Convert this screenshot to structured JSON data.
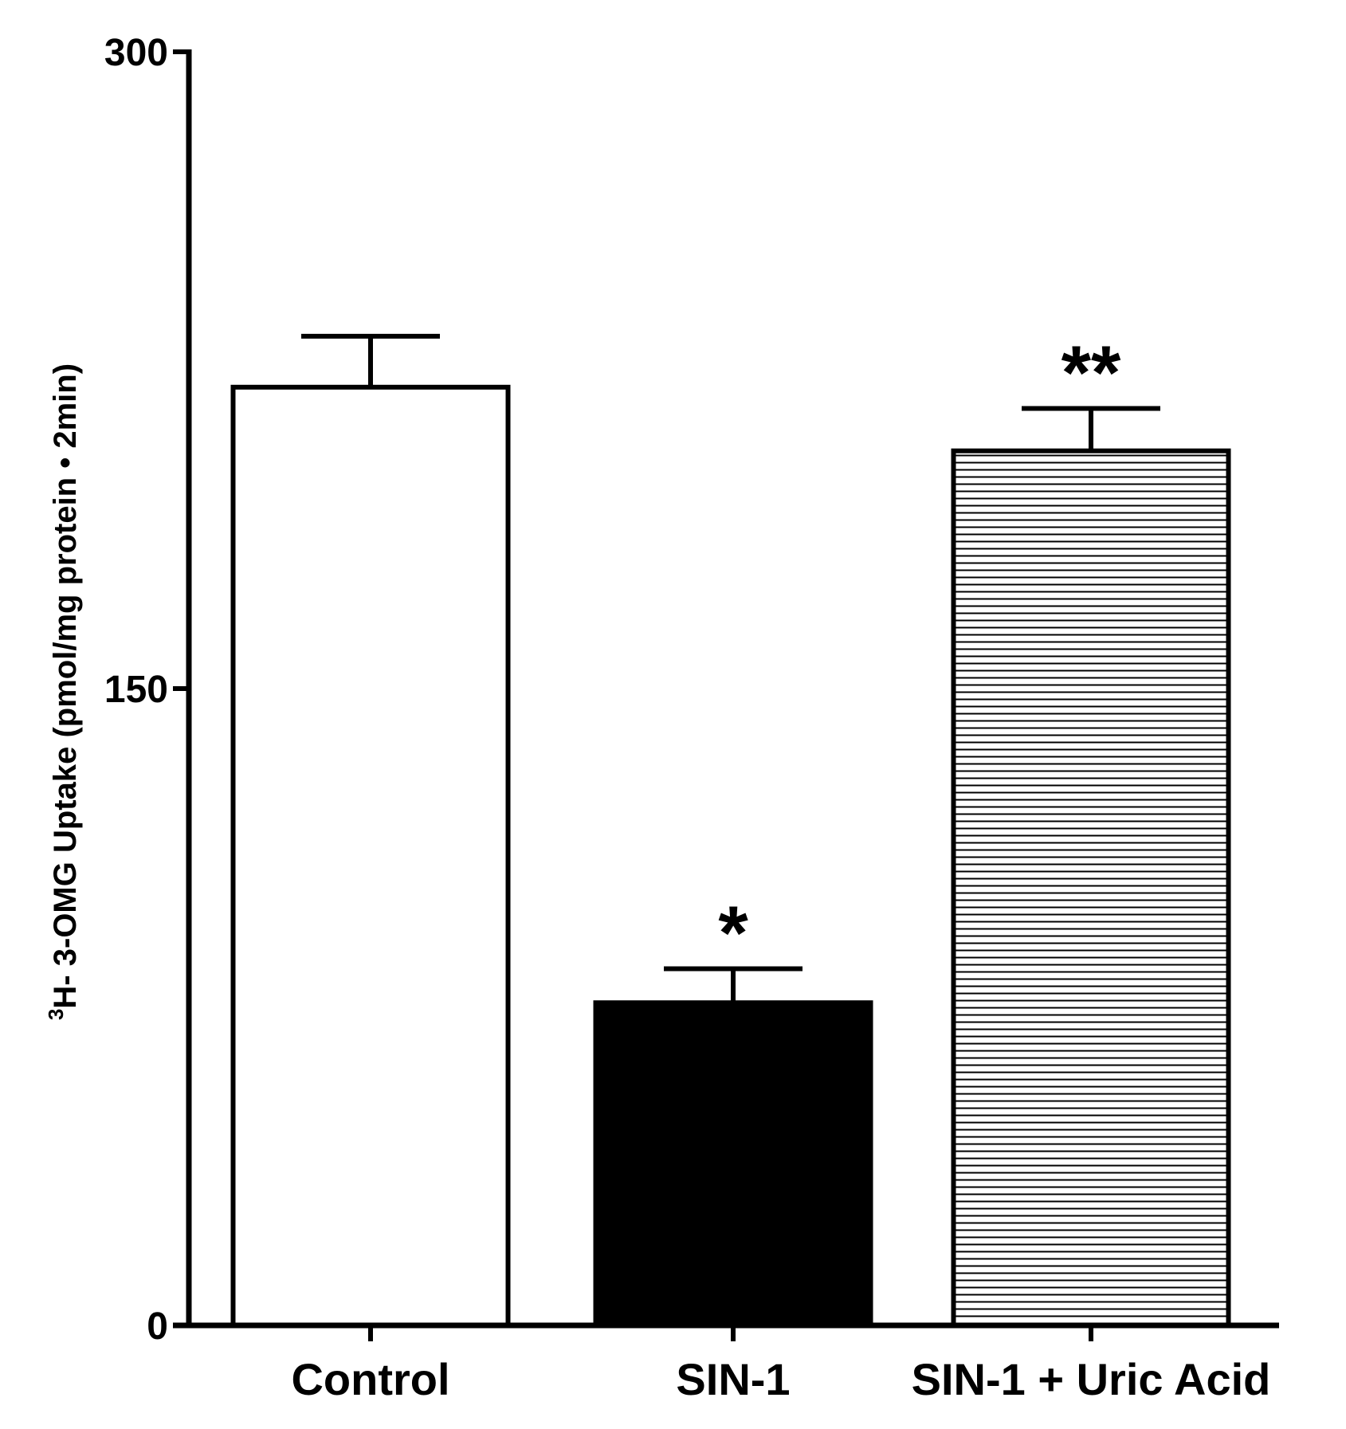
{
  "chart_data": {
    "type": "bar",
    "title": "",
    "ylabel_sup": "3",
    "ylabel": "H- 3-OMG Uptake (pmol/mg protein • 2min)",
    "xlabel": "",
    "ylim": [
      0,
      300
    ],
    "yticks": [
      "0",
      "150",
      "300"
    ],
    "ytick_values": [
      0,
      150,
      300
    ],
    "categories": [
      "Control",
      "SIN-1",
      "SIN-1 + Uric Acid"
    ],
    "values": [
      221,
      76,
      206
    ],
    "errors": [
      12,
      8,
      10
    ],
    "annotations": [
      "",
      "*",
      "**"
    ],
    "fills": [
      "white",
      "black",
      "horizontal-stripes"
    ],
    "colors": {
      "axis": "#000000",
      "bar_edge": "#000000",
      "background": "#ffffff"
    },
    "grid": false,
    "legend": "none"
  }
}
